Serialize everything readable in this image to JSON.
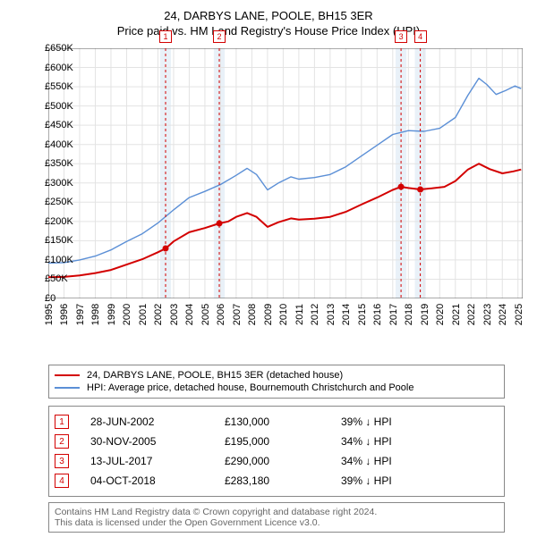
{
  "title": "24, DARBYS LANE, POOLE, BH15 3ER",
  "subtitle": "Price paid vs. HM Land Registry's House Price Index (HPI)",
  "chart": {
    "type": "line",
    "background_color": "#ffffff",
    "grid_color": "#e3e3e3",
    "axis_color": "#555555",
    "x": {
      "min": 1995,
      "max": 2025.3,
      "ticks": [
        1995,
        1996,
        1997,
        1998,
        1999,
        2000,
        2001,
        2002,
        2003,
        2004,
        2005,
        2006,
        2007,
        2008,
        2009,
        2010,
        2011,
        2012,
        2013,
        2014,
        2015,
        2016,
        2017,
        2018,
        2019,
        2020,
        2021,
        2022,
        2023,
        2024,
        2025
      ],
      "tick_labels": [
        "1995",
        "1996",
        "1997",
        "1998",
        "1999",
        "2000",
        "2001",
        "2002",
        "2003",
        "2004",
        "2005",
        "2006",
        "2007",
        "2008",
        "2009",
        "2010",
        "2011",
        "2012",
        "2013",
        "2014",
        "2015",
        "2016",
        "2017",
        "2018",
        "2019",
        "2020",
        "2021",
        "2022",
        "2023",
        "2024",
        "2025"
      ],
      "label_fontsize": 11
    },
    "y": {
      "min": 0,
      "max": 650000,
      "ticks": [
        0,
        50000,
        100000,
        150000,
        200000,
        250000,
        300000,
        350000,
        400000,
        450000,
        500000,
        550000,
        600000,
        650000
      ],
      "tick_labels": [
        "£0",
        "£50K",
        "£100K",
        "£150K",
        "£200K",
        "£250K",
        "£300K",
        "£350K",
        "£400K",
        "£450K",
        "£500K",
        "£550K",
        "£600K",
        "£650K"
      ],
      "label_fontsize": 11
    },
    "series": [
      {
        "id": "property",
        "label": "24, DARBYS LANE, POOLE, BH15 3ER (detached house)",
        "color": "#d30000",
        "line_width": 2,
        "points": [
          [
            1995.0,
            55000
          ],
          [
            1996.0,
            56000
          ],
          [
            1997.0,
            60000
          ],
          [
            1998.0,
            66000
          ],
          [
            1999.0,
            74000
          ],
          [
            2000.0,
            88000
          ],
          [
            2001.0,
            102000
          ],
          [
            2002.0,
            120000
          ],
          [
            2002.5,
            130000
          ],
          [
            2003.0,
            148000
          ],
          [
            2004.0,
            172000
          ],
          [
            2005.0,
            183000
          ],
          [
            2005.92,
            195000
          ],
          [
            2006.5,
            200000
          ],
          [
            2007.0,
            212000
          ],
          [
            2007.7,
            222000
          ],
          [
            2008.3,
            212000
          ],
          [
            2009.0,
            186000
          ],
          [
            2009.7,
            198000
          ],
          [
            2010.5,
            208000
          ],
          [
            2011.0,
            205000
          ],
          [
            2012.0,
            207000
          ],
          [
            2013.0,
            212000
          ],
          [
            2014.0,
            225000
          ],
          [
            2015.0,
            244000
          ],
          [
            2016.0,
            262000
          ],
          [
            2017.0,
            282000
          ],
          [
            2017.53,
            290000
          ],
          [
            2018.0,
            287000
          ],
          [
            2018.76,
            283180
          ],
          [
            2019.5,
            286000
          ],
          [
            2020.3,
            290000
          ],
          [
            2021.0,
            305000
          ],
          [
            2021.8,
            335000
          ],
          [
            2022.5,
            350000
          ],
          [
            2023.2,
            336000
          ],
          [
            2024.0,
            325000
          ],
          [
            2024.7,
            330000
          ],
          [
            2025.2,
            335000
          ]
        ]
      },
      {
        "id": "hpi",
        "label": "HPI: Average price, detached house, Bournemouth Christchurch and Poole",
        "color": "#5b8fd6",
        "line_width": 1.4,
        "points": [
          [
            1995.0,
            92000
          ],
          [
            1996.0,
            93000
          ],
          [
            1997.0,
            100000
          ],
          [
            1998.0,
            110000
          ],
          [
            1999.0,
            126000
          ],
          [
            2000.0,
            148000
          ],
          [
            2001.0,
            168000
          ],
          [
            2002.0,
            196000
          ],
          [
            2003.0,
            230000
          ],
          [
            2004.0,
            262000
          ],
          [
            2005.0,
            278000
          ],
          [
            2006.0,
            296000
          ],
          [
            2007.0,
            320000
          ],
          [
            2007.7,
            338000
          ],
          [
            2008.3,
            322000
          ],
          [
            2009.0,
            282000
          ],
          [
            2009.7,
            300000
          ],
          [
            2010.5,
            316000
          ],
          [
            2011.0,
            310000
          ],
          [
            2012.0,
            314000
          ],
          [
            2013.0,
            322000
          ],
          [
            2014.0,
            342000
          ],
          [
            2015.0,
            370000
          ],
          [
            2016.0,
            398000
          ],
          [
            2017.0,
            426000
          ],
          [
            2018.0,
            436000
          ],
          [
            2019.0,
            434000
          ],
          [
            2020.0,
            442000
          ],
          [
            2021.0,
            470000
          ],
          [
            2021.8,
            528000
          ],
          [
            2022.5,
            572000
          ],
          [
            2023.0,
            556000
          ],
          [
            2023.6,
            530000
          ],
          [
            2024.2,
            540000
          ],
          [
            2024.8,
            552000
          ],
          [
            2025.2,
            545000
          ]
        ]
      }
    ],
    "sale_markers": [
      {
        "n": "1",
        "x": 2002.49,
        "y": 130000
      },
      {
        "n": "2",
        "x": 2005.92,
        "y": 195000
      },
      {
        "n": "3",
        "x": 2017.53,
        "y": 290000
      },
      {
        "n": "4",
        "x": 2018.76,
        "y": 283180
      }
    ],
    "marker_style": {
      "dash_color": "#d30000",
      "dash_pattern": "3,3",
      "band_color": "#dbe7f4",
      "band_half_width_years": 0.35,
      "dot_radius": 3.5,
      "dot_fill": "#d30000"
    }
  },
  "legend": {
    "items": [
      {
        "series": "property"
      },
      {
        "series": "hpi"
      }
    ]
  },
  "transactions": {
    "rows": [
      {
        "n": "1",
        "date": "28-JUN-2002",
        "price": "£130,000",
        "delta": "39% ↓ HPI"
      },
      {
        "n": "2",
        "date": "30-NOV-2005",
        "price": "£195,000",
        "delta": "34% ↓ HPI"
      },
      {
        "n": "3",
        "date": "13-JUL-2017",
        "price": "£290,000",
        "delta": "34% ↓ HPI"
      },
      {
        "n": "4",
        "date": "04-OCT-2018",
        "price": "£283,180",
        "delta": "39% ↓ HPI"
      }
    ]
  },
  "footer": {
    "line1": "Contains HM Land Registry data © Crown copyright and database right 2024.",
    "line2": "This data is licensed under the Open Government Licence v3.0."
  }
}
